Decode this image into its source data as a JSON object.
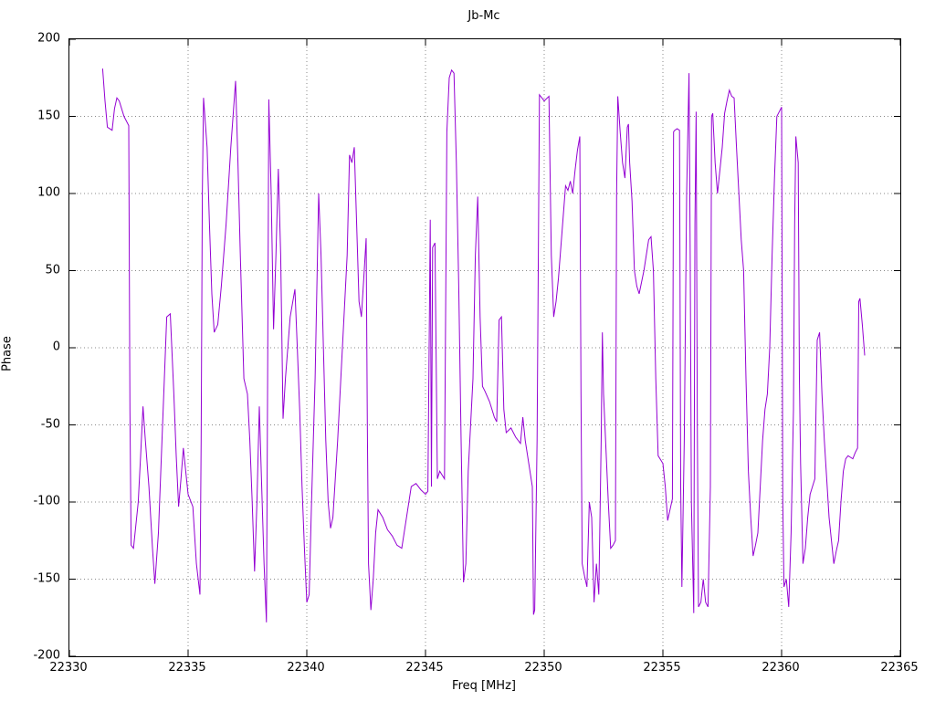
{
  "chart_data": {
    "type": "line",
    "title": "Jb-Mc",
    "xlabel": "Freq [MHz]",
    "ylabel": "Phase",
    "xlim": [
      22330,
      22365
    ],
    "ylim": [
      -200,
      200
    ],
    "xticks": [
      22330,
      22335,
      22340,
      22345,
      22350,
      22355,
      22360,
      22365
    ],
    "yticks": [
      -200,
      -150,
      -100,
      -50,
      0,
      50,
      100,
      150,
      200
    ],
    "grid": true,
    "legend": "none",
    "line_color": "#9400d3",
    "series_name": "Jb-Mc phase",
    "points": [
      [
        22331.4,
        181
      ],
      [
        22331.5,
        160
      ],
      [
        22331.6,
        143
      ],
      [
        22331.8,
        141
      ],
      [
        22331.9,
        155
      ],
      [
        22332.0,
        162
      ],
      [
        22332.1,
        160
      ],
      [
        22332.3,
        150
      ],
      [
        22332.5,
        144
      ],
      [
        22332.55,
        -40
      ],
      [
        22332.6,
        -128
      ],
      [
        22332.7,
        -130
      ],
      [
        22332.9,
        -100
      ],
      [
        22333.0,
        -70
      ],
      [
        22333.1,
        -38
      ],
      [
        22333.2,
        -60
      ],
      [
        22333.35,
        -90
      ],
      [
        22333.5,
        -130
      ],
      [
        22333.6,
        -153
      ],
      [
        22333.75,
        -120
      ],
      [
        22333.9,
        -60
      ],
      [
        22334.0,
        -20
      ],
      [
        22334.1,
        20
      ],
      [
        22334.25,
        22
      ],
      [
        22334.4,
        -30
      ],
      [
        22334.5,
        -70
      ],
      [
        22334.6,
        -103
      ],
      [
        22334.7,
        -85
      ],
      [
        22334.8,
        -65
      ],
      [
        22334.9,
        -80
      ],
      [
        22335.0,
        -95
      ],
      [
        22335.2,
        -103
      ],
      [
        22335.35,
        -140
      ],
      [
        22335.5,
        -160
      ],
      [
        22335.55,
        -60
      ],
      [
        22335.6,
        100
      ],
      [
        22335.65,
        162
      ],
      [
        22335.8,
        130
      ],
      [
        22335.9,
        80
      ],
      [
        22336.0,
        35
      ],
      [
        22336.1,
        10
      ],
      [
        22336.25,
        15
      ],
      [
        22336.4,
        40
      ],
      [
        22336.6,
        80
      ],
      [
        22336.8,
        130
      ],
      [
        22337.0,
        173
      ],
      [
        22337.1,
        120
      ],
      [
        22337.2,
        60
      ],
      [
        22337.35,
        -20
      ],
      [
        22337.5,
        -30
      ],
      [
        22337.6,
        -60
      ],
      [
        22337.7,
        -100
      ],
      [
        22337.8,
        -145
      ],
      [
        22337.9,
        -100
      ],
      [
        22338.0,
        -38
      ],
      [
        22338.1,
        -90
      ],
      [
        22338.2,
        -140
      ],
      [
        22338.3,
        -178
      ],
      [
        22338.35,
        -20
      ],
      [
        22338.4,
        161
      ],
      [
        22338.5,
        100
      ],
      [
        22338.6,
        12
      ],
      [
        22338.7,
        60
      ],
      [
        22338.8,
        116
      ],
      [
        22338.9,
        60
      ],
      [
        22339.0,
        -46
      ],
      [
        22339.1,
        -20
      ],
      [
        22339.3,
        20
      ],
      [
        22339.5,
        38
      ],
      [
        22339.6,
        0
      ],
      [
        22339.7,
        -40
      ],
      [
        22339.8,
        -90
      ],
      [
        22339.9,
        -130
      ],
      [
        22340.0,
        -165
      ],
      [
        22340.1,
        -160
      ],
      [
        22340.2,
        -100
      ],
      [
        22340.35,
        -20
      ],
      [
        22340.5,
        100
      ],
      [
        22340.6,
        60
      ],
      [
        22340.7,
        0
      ],
      [
        22340.8,
        -60
      ],
      [
        22340.9,
        -100
      ],
      [
        22341.0,
        -117
      ],
      [
        22341.1,
        -110
      ],
      [
        22341.3,
        -60
      ],
      [
        22341.5,
        0
      ],
      [
        22341.7,
        60
      ],
      [
        22341.8,
        125
      ],
      [
        22341.9,
        120
      ],
      [
        22342.0,
        130
      ],
      [
        22342.1,
        80
      ],
      [
        22342.2,
        30
      ],
      [
        22342.3,
        20
      ],
      [
        22342.4,
        45
      ],
      [
        22342.5,
        71
      ],
      [
        22342.55,
        -50
      ],
      [
        22342.6,
        -140
      ],
      [
        22342.7,
        -170
      ],
      [
        22342.8,
        -150
      ],
      [
        22342.9,
        -120
      ],
      [
        22343.0,
        -105
      ],
      [
        22343.2,
        -110
      ],
      [
        22343.4,
        -118
      ],
      [
        22343.6,
        -122
      ],
      [
        22343.8,
        -128
      ],
      [
        22344.0,
        -130
      ],
      [
        22344.2,
        -110
      ],
      [
        22344.4,
        -90
      ],
      [
        22344.6,
        -88
      ],
      [
        22344.8,
        -92
      ],
      [
        22345.0,
        -95
      ],
      [
        22345.1,
        -93
      ],
      [
        22345.2,
        83
      ],
      [
        22345.25,
        -90
      ],
      [
        22345.3,
        65
      ],
      [
        22345.4,
        68
      ],
      [
        22345.5,
        -85
      ],
      [
        22345.6,
        -80
      ],
      [
        22345.8,
        -85
      ],
      [
        22345.9,
        140
      ],
      [
        22346.0,
        175
      ],
      [
        22346.1,
        180
      ],
      [
        22346.2,
        178
      ],
      [
        22346.3,
        120
      ],
      [
        22346.4,
        40
      ],
      [
        22346.5,
        -60
      ],
      [
        22346.6,
        -152
      ],
      [
        22346.7,
        -140
      ],
      [
        22346.8,
        -80
      ],
      [
        22347.0,
        -20
      ],
      [
        22347.1,
        60
      ],
      [
        22347.2,
        98
      ],
      [
        22347.3,
        20
      ],
      [
        22347.4,
        -25
      ],
      [
        22347.5,
        -28
      ],
      [
        22347.7,
        -35
      ],
      [
        22347.9,
        -45
      ],
      [
        22348.0,
        -48
      ],
      [
        22348.1,
        18
      ],
      [
        22348.2,
        20
      ],
      [
        22348.3,
        -40
      ],
      [
        22348.4,
        -55
      ],
      [
        22348.6,
        -52
      ],
      [
        22348.8,
        -58
      ],
      [
        22349.0,
        -62
      ],
      [
        22349.1,
        -45
      ],
      [
        22349.2,
        -60
      ],
      [
        22349.4,
        -80
      ],
      [
        22349.5,
        -90
      ],
      [
        22349.55,
        -173
      ],
      [
        22349.6,
        -170
      ],
      [
        22349.7,
        -60
      ],
      [
        22349.8,
        164
      ],
      [
        22349.9,
        162
      ],
      [
        22350.0,
        160
      ],
      [
        22350.2,
        163
      ],
      [
        22350.3,
        60
      ],
      [
        22350.4,
        20
      ],
      [
        22350.5,
        30
      ],
      [
        22350.6,
        45
      ],
      [
        22350.7,
        65
      ],
      [
        22350.8,
        85
      ],
      [
        22350.9,
        105
      ],
      [
        22351.0,
        102
      ],
      [
        22351.1,
        108
      ],
      [
        22351.2,
        100
      ],
      [
        22351.3,
        115
      ],
      [
        22351.4,
        128
      ],
      [
        22351.5,
        137
      ],
      [
        22351.55,
        -30
      ],
      [
        22351.6,
        -140
      ],
      [
        22351.7,
        -148
      ],
      [
        22351.8,
        -155
      ],
      [
        22351.9,
        -100
      ],
      [
        22352.0,
        -110
      ],
      [
        22352.1,
        -165
      ],
      [
        22352.2,
        -140
      ],
      [
        22352.3,
        -160
      ],
      [
        22352.4,
        -60
      ],
      [
        22352.45,
        10
      ],
      [
        22352.5,
        -30
      ],
      [
        22352.6,
        -65
      ],
      [
        22352.7,
        -100
      ],
      [
        22352.8,
        -130
      ],
      [
        22352.9,
        -128
      ],
      [
        22353.0,
        -125
      ],
      [
        22353.05,
        100
      ],
      [
        22353.1,
        163
      ],
      [
        22353.2,
        140
      ],
      [
        22353.3,
        120
      ],
      [
        22353.4,
        110
      ],
      [
        22353.5,
        143
      ],
      [
        22353.55,
        145
      ],
      [
        22353.6,
        120
      ],
      [
        22353.7,
        95
      ],
      [
        22353.8,
        50
      ],
      [
        22353.9,
        40
      ],
      [
        22354.0,
        35
      ],
      [
        22354.2,
        50
      ],
      [
        22354.4,
        70
      ],
      [
        22354.5,
        72
      ],
      [
        22354.6,
        50
      ],
      [
        22354.7,
        -20
      ],
      [
        22354.8,
        -70
      ],
      [
        22355.0,
        -75
      ],
      [
        22355.1,
        -90
      ],
      [
        22355.2,
        -112
      ],
      [
        22355.3,
        -105
      ],
      [
        22355.4,
        -98
      ],
      [
        22355.45,
        140
      ],
      [
        22355.5,
        141
      ],
      [
        22355.6,
        142
      ],
      [
        22355.7,
        141
      ],
      [
        22355.75,
        -90
      ],
      [
        22355.8,
        -155
      ],
      [
        22355.9,
        -60
      ],
      [
        22356.0,
        100
      ],
      [
        22356.1,
        178
      ],
      [
        22356.15,
        60
      ],
      [
        22356.2,
        -100
      ],
      [
        22356.3,
        -172
      ],
      [
        22356.35,
        80
      ],
      [
        22356.4,
        153
      ],
      [
        22356.45,
        -50
      ],
      [
        22356.5,
        -168
      ],
      [
        22356.6,
        -165
      ],
      [
        22356.7,
        -150
      ],
      [
        22356.8,
        -165
      ],
      [
        22356.9,
        -168
      ],
      [
        22357.0,
        -90
      ],
      [
        22357.05,
        150
      ],
      [
        22357.1,
        152
      ],
      [
        22357.2,
        120
      ],
      [
        22357.3,
        100
      ],
      [
        22357.4,
        115
      ],
      [
        22357.5,
        130
      ],
      [
        22357.6,
        152
      ],
      [
        22357.7,
        160
      ],
      [
        22357.8,
        167
      ],
      [
        22357.9,
        163
      ],
      [
        22358.0,
        162
      ],
      [
        22358.1,
        130
      ],
      [
        22358.2,
        100
      ],
      [
        22358.3,
        70
      ],
      [
        22358.4,
        50
      ],
      [
        22358.5,
        -20
      ],
      [
        22358.6,
        -80
      ],
      [
        22358.7,
        -110
      ],
      [
        22358.8,
        -135
      ],
      [
        22358.9,
        -128
      ],
      [
        22359.0,
        -120
      ],
      [
        22359.1,
        -90
      ],
      [
        22359.2,
        -60
      ],
      [
        22359.3,
        -40
      ],
      [
        22359.4,
        -30
      ],
      [
        22359.5,
        0
      ],
      [
        22359.6,
        60
      ],
      [
        22359.7,
        110
      ],
      [
        22359.8,
        150
      ],
      [
        22359.9,
        153
      ],
      [
        22360.0,
        156
      ],
      [
        22360.05,
        -100
      ],
      [
        22360.1,
        -155
      ],
      [
        22360.2,
        -150
      ],
      [
        22360.3,
        -168
      ],
      [
        22360.4,
        -120
      ],
      [
        22360.5,
        -40
      ],
      [
        22360.55,
        80
      ],
      [
        22360.6,
        137
      ],
      [
        22360.7,
        120
      ],
      [
        22360.75,
        -20
      ],
      [
        22360.8,
        -75
      ],
      [
        22360.9,
        -140
      ],
      [
        22361.0,
        -130
      ],
      [
        22361.1,
        -110
      ],
      [
        22361.2,
        -95
      ],
      [
        22361.3,
        -90
      ],
      [
        22361.4,
        -85
      ],
      [
        22361.5,
        5
      ],
      [
        22361.6,
        10
      ],
      [
        22361.7,
        -30
      ],
      [
        22361.8,
        -60
      ],
      [
        22361.9,
        -85
      ],
      [
        22362.0,
        -110
      ],
      [
        22362.1,
        -125
      ],
      [
        22362.2,
        -140
      ],
      [
        22362.3,
        -132
      ],
      [
        22362.4,
        -125
      ],
      [
        22362.5,
        -100
      ],
      [
        22362.6,
        -80
      ],
      [
        22362.7,
        -72
      ],
      [
        22362.8,
        -70
      ],
      [
        22362.9,
        -71
      ],
      [
        22363.0,
        -72
      ],
      [
        22363.1,
        -68
      ],
      [
        22363.2,
        -65
      ],
      [
        22363.25,
        30
      ],
      [
        22363.3,
        32
      ],
      [
        22363.4,
        15
      ],
      [
        22363.5,
        -5
      ]
    ]
  }
}
